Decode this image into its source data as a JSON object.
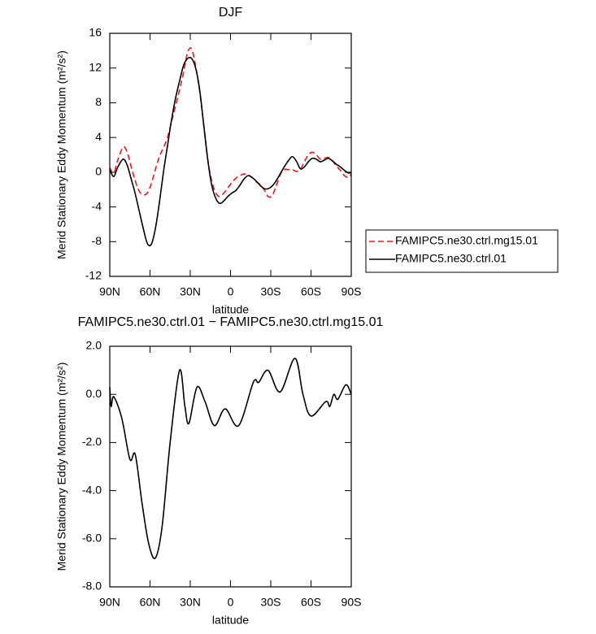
{
  "chart_data": [
    {
      "type": "line",
      "title": "DJF",
      "x_label": "latitude",
      "y_label": "Merid Stationary Eddy Momentum (m²/s²)",
      "xlim": [
        90,
        -90
      ],
      "xticks": [
        {
          "value": 90,
          "label": "90N"
        },
        {
          "value": 60,
          "label": "60N"
        },
        {
          "value": 30,
          "label": "30N"
        },
        0,
        {
          "value": -30,
          "label": "30S"
        },
        {
          "value": -60,
          "label": "60S"
        },
        {
          "value": -90,
          "label": "90S"
        }
      ],
      "ylim": [
        -12,
        16
      ],
      "yticks": [
        16,
        12,
        8,
        4,
        0,
        -4,
        -8,
        -12
      ],
      "legend": "right",
      "x": [
        90,
        87,
        84,
        80,
        77,
        74,
        71,
        68,
        65,
        62,
        59,
        56,
        53,
        50,
        47,
        44,
        41,
        38,
        35,
        32,
        29,
        26,
        23,
        20,
        17,
        14,
        11,
        8,
        5,
        2,
        -1,
        -4,
        -7,
        -10,
        -13,
        -16,
        -19,
        -22,
        -25,
        -28,
        -31,
        -34,
        -37,
        -40,
        -43,
        -46,
        -49,
        -52,
        -55,
        -58,
        -61,
        -64,
        -67,
        -70,
        -73,
        -76,
        -79,
        -82,
        -85,
        -88,
        -90
      ],
      "series": [
        {
          "name": "FAMIPC5.ne30.ctrl.mg15.01",
          "color": "#e41a1c",
          "linestyle": "dashed",
          "values": [
            0.5,
            -0.1,
            1.4,
            2.9,
            2.3,
            0.6,
            -1,
            -2.2,
            -2.6,
            -2.4,
            -1.3,
            0.3,
            1.8,
            2.8,
            4,
            5.8,
            7.6,
            9.5,
            11.5,
            13.8,
            14.2,
            12.2,
            9.3,
            5.5,
            1.5,
            -1,
            -2.4,
            -2.8,
            -2.4,
            -1.8,
            -1.2,
            -0.7,
            -0.4,
            -0.2,
            -0.3,
            -0.6,
            -1.1,
            -1.4,
            -2,
            -2.8,
            -2.7,
            -1.6,
            -0.3,
            0.3,
            0.3,
            0.3,
            0.1,
            0.3,
            1.2,
            2,
            2.3,
            2,
            1.5,
            1.6,
            1.7,
            1.3,
            0.7,
            0.2,
            -0.4,
            -0.6,
            -0.2
          ]
        },
        {
          "name": "FAMIPC5.ne30.ctrl.01",
          "color": "#000000",
          "linestyle": "solid",
          "values": [
            0.3,
            -0.5,
            0.6,
            1.5,
            0.8,
            -0.8,
            -2.5,
            -4.5,
            -6.5,
            -8.2,
            -8.3,
            -6.5,
            -3.5,
            0,
            3,
            6,
            8.5,
            10.5,
            12.3,
            13.1,
            13.1,
            12,
            9.5,
            5.5,
            1.5,
            -1.5,
            -3,
            -3.6,
            -3.3,
            -2.8,
            -2.4,
            -2.1,
            -1.5,
            -0.8,
            -0.4,
            -0.6,
            -1,
            -1.5,
            -1.9,
            -1.9,
            -1.6,
            -1,
            -0.2,
            0.6,
            1.3,
            1.8,
            1.3,
            0.4,
            0.6,
            1.2,
            1.6,
            1.5,
            1.2,
            1.4,
            1.6,
            1.3,
            0.9,
            0.6,
            0.2,
            -0.1,
            0
          ]
        }
      ]
    },
    {
      "type": "line",
      "title": "FAMIPC5.ne30.ctrl.01 − FAMIPC5.ne30.ctrl.mg15.01",
      "x_label": "latitude",
      "y_label": "Merid Stationary Eddy Momentum (m²/s²)",
      "xlim": [
        90,
        -90
      ],
      "xticks": [
        {
          "value": 90,
          "label": "90N"
        },
        {
          "value": 60,
          "label": "60N"
        },
        {
          "value": 30,
          "label": "30N"
        },
        0,
        {
          "value": -30,
          "label": "30S"
        },
        {
          "value": -60,
          "label": "60S"
        },
        {
          "value": -90,
          "label": "90S"
        }
      ],
      "ylim": [
        -8,
        2
      ],
      "yticks": [
        {
          "value": 2,
          "label": "2.0"
        },
        {
          "value": 0,
          "label": "0.0"
        },
        {
          "value": -2,
          "label": "-2.0"
        },
        {
          "value": -4,
          "label": "-4.0"
        },
        {
          "value": -6,
          "label": "-6.0"
        },
        {
          "value": -8,
          "label": "-8.0"
        }
      ],
      "color": "#000000",
      "x": [
        90,
        89,
        87,
        81,
        75,
        71,
        66,
        61,
        56,
        51,
        45,
        38,
        34,
        31,
        25,
        19,
        12,
        4,
        -6,
        -17,
        -21,
        -28,
        -37,
        -48,
        -54,
        -60,
        -71,
        -74,
        -77,
        -80,
        -86,
        -90
      ],
      "values": [
        0.3,
        -0.5,
        -0.1,
        -1.0,
        -2.7,
        -2.5,
        -4.5,
        -6.2,
        -6.8,
        -5.5,
        -2.0,
        1.0,
        -0.5,
        -1.2,
        0.3,
        -0.3,
        -1.3,
        -0.6,
        -1.3,
        0.5,
        0.5,
        1.0,
        0.1,
        1.5,
        0,
        -0.9,
        -0.3,
        -0.5,
        0,
        -0.2,
        0.4,
        0
      ]
    }
  ]
}
